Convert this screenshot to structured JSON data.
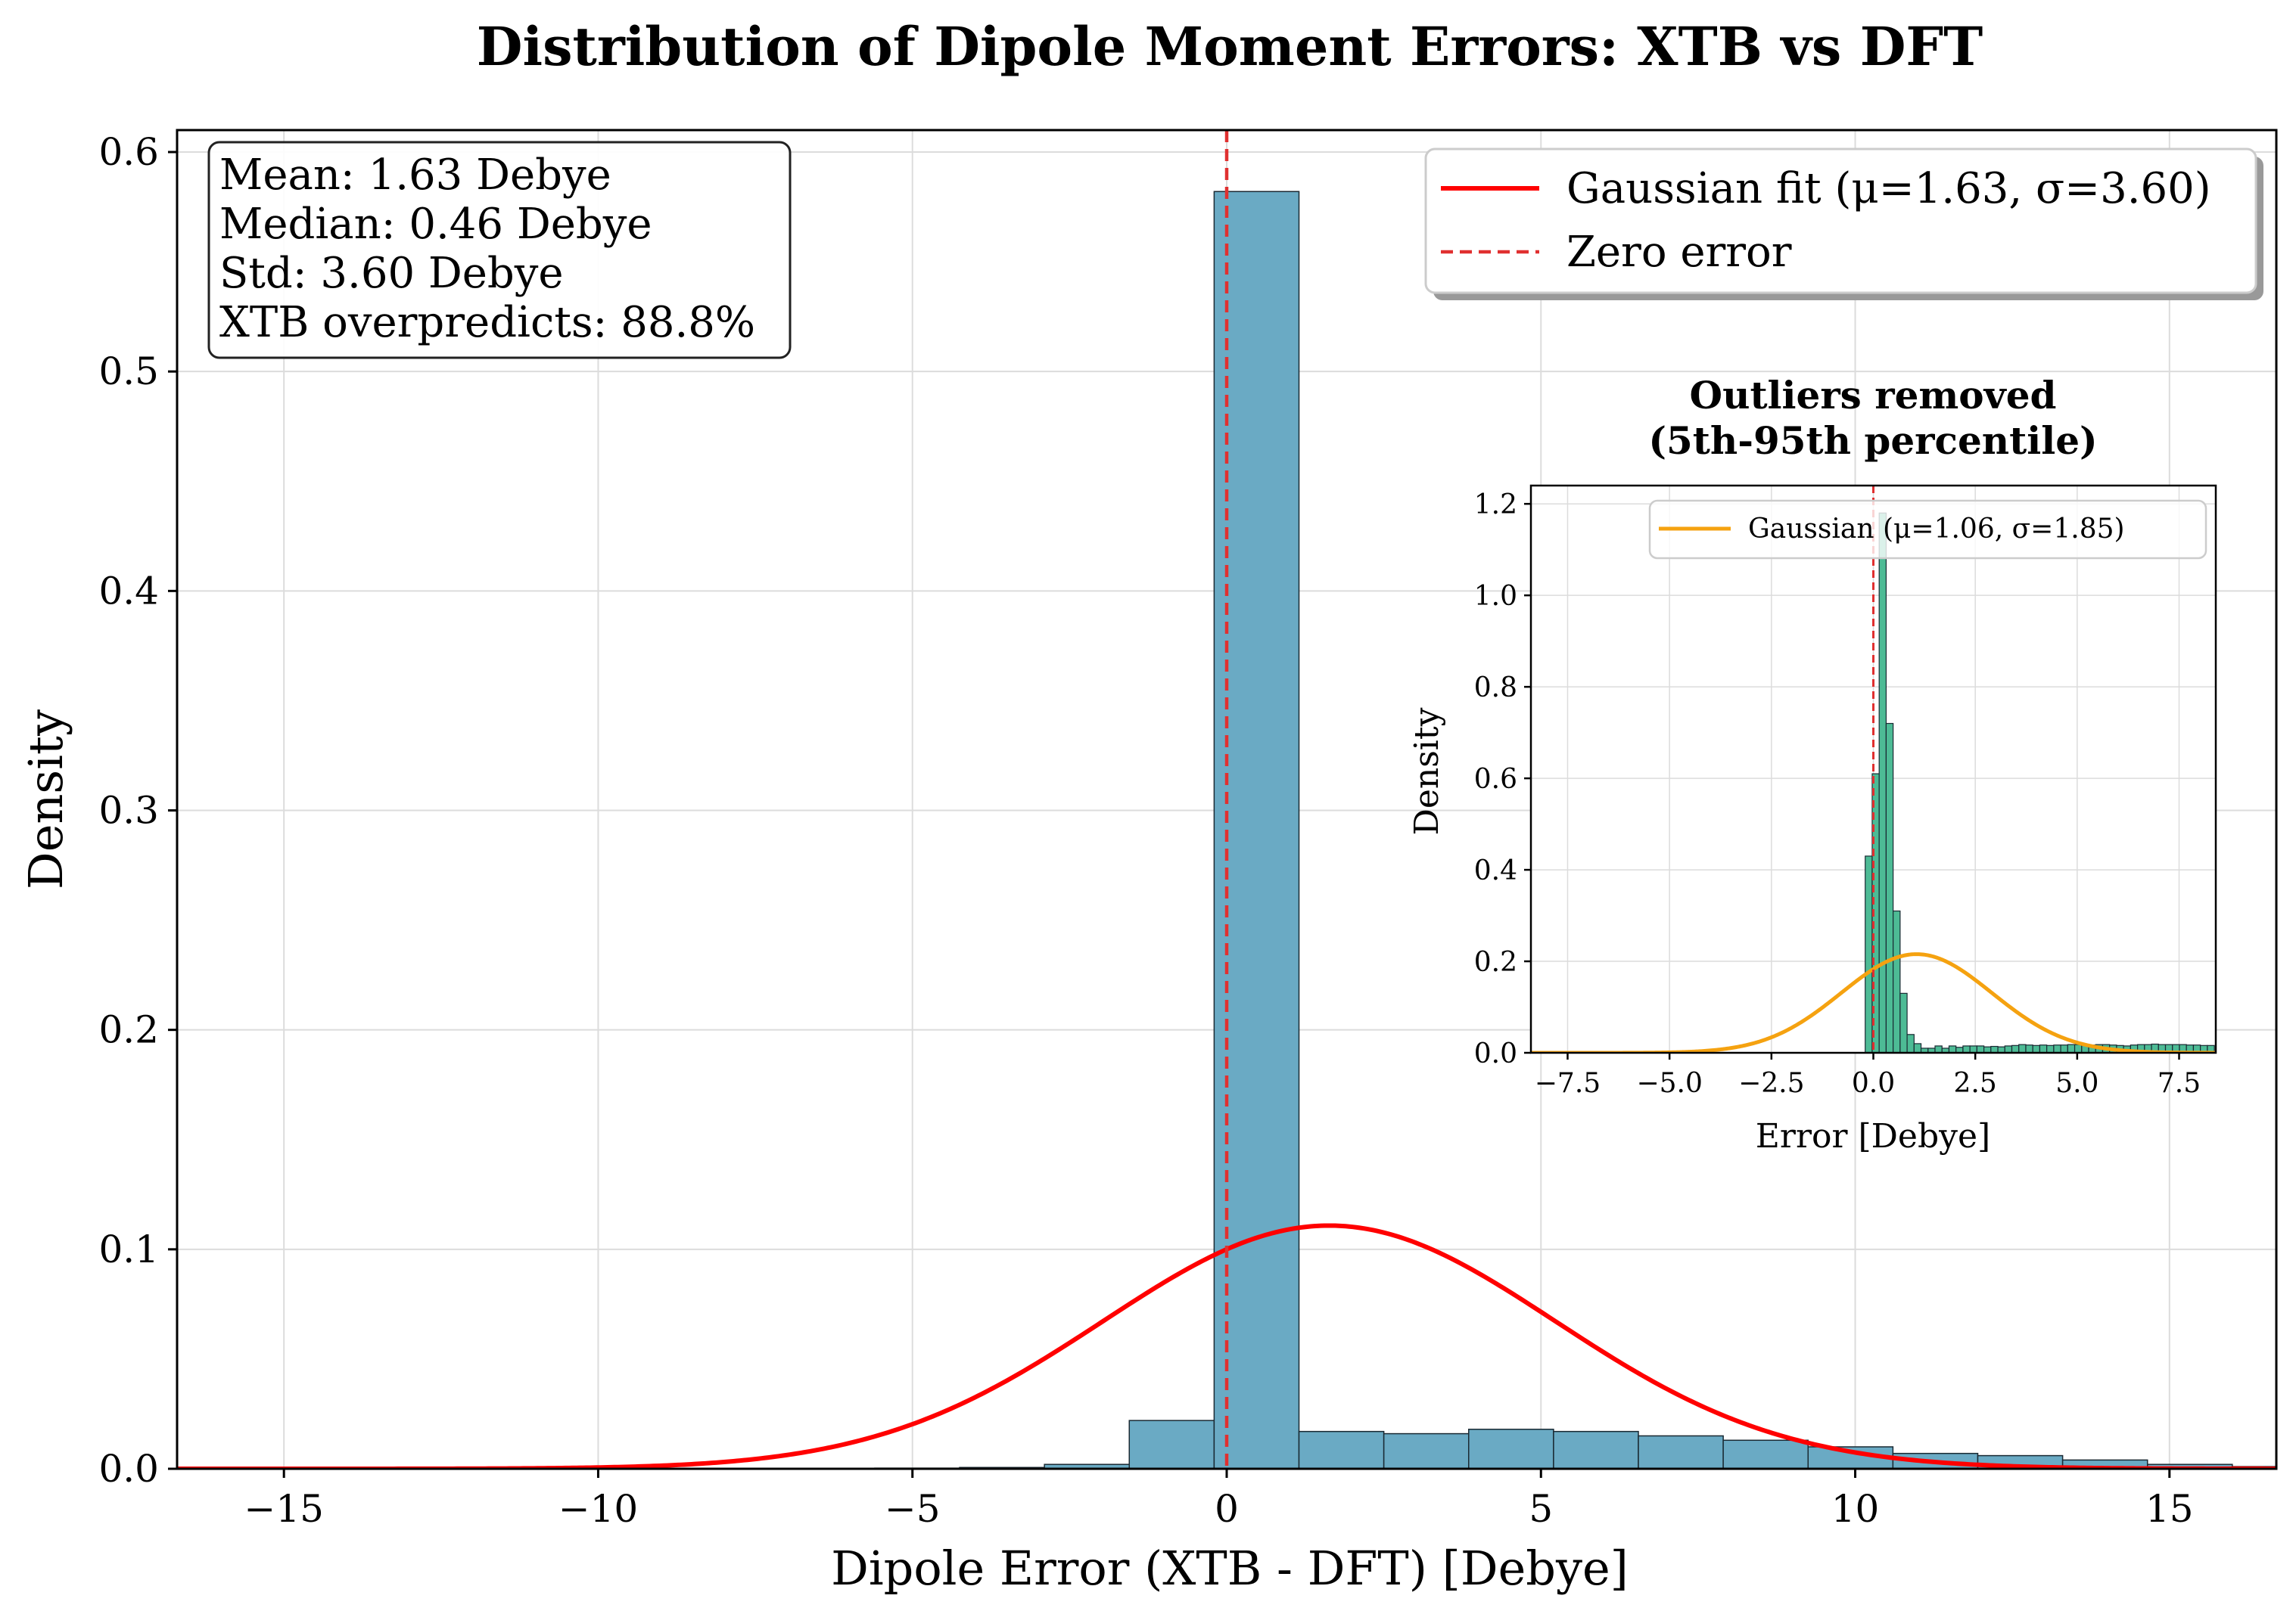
{
  "chart_data": [
    {
      "type": "bar",
      "subtype": "histogram",
      "title": "Distribution of Dipole Moment Errors: XTB vs DFT",
      "xlabel": "Dipole Error (XTB - DFT) [Debye]",
      "ylabel": "Density",
      "xlim": [
        -16.7,
        16.7
      ],
      "ylim": [
        0,
        0.61
      ],
      "xticks": [
        -15,
        -10,
        -5,
        0,
        5,
        10,
        15
      ],
      "xtick_labels": [
        "−15",
        "−10",
        "−5",
        "0",
        "5",
        "10",
        "15"
      ],
      "yticks": [
        0.0,
        0.1,
        0.2,
        0.3,
        0.4,
        0.5,
        0.6
      ],
      "ytick_labels": [
        "0.0",
        "0.1",
        "0.2",
        "0.3",
        "0.4",
        "0.5",
        "0.6"
      ],
      "grid": true,
      "bar_color": "#6aaac4",
      "bins": [
        {
          "x0": -5.6,
          "x1": -4.25,
          "value": 0.0003
        },
        {
          "x0": -4.25,
          "x1": -2.9,
          "value": 0.0006
        },
        {
          "x0": -2.9,
          "x1": -1.55,
          "value": 0.002
        },
        {
          "x0": -1.55,
          "x1": -0.2,
          "value": 0.022
        },
        {
          "x0": -0.2,
          "x1": 1.15,
          "value": 0.582
        },
        {
          "x0": 1.15,
          "x1": 2.5,
          "value": 0.017
        },
        {
          "x0": 2.5,
          "x1": 3.85,
          "value": 0.016
        },
        {
          "x0": 3.85,
          "x1": 5.2,
          "value": 0.018
        },
        {
          "x0": 5.2,
          "x1": 6.55,
          "value": 0.017
        },
        {
          "x0": 6.55,
          "x1": 7.9,
          "value": 0.015
        },
        {
          "x0": 7.9,
          "x1": 9.25,
          "value": 0.013
        },
        {
          "x0": 9.25,
          "x1": 10.6,
          "value": 0.01
        },
        {
          "x0": 10.6,
          "x1": 11.95,
          "value": 0.007
        },
        {
          "x0": 11.95,
          "x1": 13.3,
          "value": 0.006
        },
        {
          "x0": 13.3,
          "x1": 14.65,
          "value": 0.004
        },
        {
          "x0": 14.65,
          "x1": 16.0,
          "value": 0.002
        },
        {
          "x0": 16.0,
          "x1": 17.35,
          "value": 0.001
        }
      ],
      "gaussian_fit": {
        "mu": 1.63,
        "sigma": 3.6,
        "color": "#ff0000"
      },
      "zero_line": {
        "x": 0,
        "color": "#e03030"
      },
      "legend": {
        "position": "upper right",
        "entries": [
          {
            "label": "Gaussian fit (μ=1.63, σ=3.60)",
            "style": "solid",
            "color": "#ff0000"
          },
          {
            "label": "Zero error",
            "style": "dashed",
            "color": "#e03030"
          }
        ]
      },
      "stats_box": {
        "position": "upper left",
        "lines": [
          "Mean: 1.63 Debye",
          "Median: 0.46 Debye",
          "Std: 3.60 Debye",
          "XTB overpredicts: 88.8%"
        ]
      }
    },
    {
      "type": "bar",
      "subtype": "histogram",
      "role": "inset",
      "title_lines": [
        "Outliers removed",
        "(5th-95th percentile)"
      ],
      "xlabel": "Error [Debye]",
      "ylabel": "Density",
      "xlim": [
        -8.4,
        8.4
      ],
      "ylim": [
        0,
        1.24
      ],
      "xticks": [
        -7.5,
        -5.0,
        -2.5,
        0.0,
        2.5,
        5.0,
        7.5
      ],
      "xtick_labels": [
        "−7.5",
        "−5.0",
        "−2.5",
        "0.0",
        "2.5",
        "5.0",
        "7.5"
      ],
      "yticks": [
        0.0,
        0.2,
        0.4,
        0.6,
        0.8,
        1.0,
        1.2
      ],
      "ytick_labels": [
        "0.0",
        "0.2",
        "0.4",
        "0.6",
        "0.8",
        "1.0",
        "1.2"
      ],
      "grid": true,
      "bar_color": "#4dbb95",
      "bin_start": -0.2,
      "bin_width": 0.1713,
      "values": [
        0.43,
        0.61,
        1.18,
        0.72,
        0.31,
        0.13,
        0.04,
        0.02,
        0.01,
        0.01,
        0.015,
        0.01,
        0.015,
        0.012,
        0.015,
        0.015,
        0.015,
        0.013,
        0.014,
        0.013,
        0.015,
        0.016,
        0.018,
        0.017,
        0.016,
        0.017,
        0.016,
        0.017,
        0.017,
        0.018,
        0.018,
        0.017,
        0.017,
        0.018,
        0.018,
        0.017,
        0.016,
        0.015,
        0.017,
        0.018,
        0.018,
        0.019,
        0.018,
        0.018,
        0.018,
        0.018,
        0.017,
        0.017,
        0.016,
        0.016
      ],
      "gaussian_fit": {
        "mu": 1.06,
        "sigma": 1.85,
        "color": "#f5a210"
      },
      "zero_line": {
        "x": 0,
        "color": "#e03030"
      },
      "legend": {
        "position": "upper right",
        "entries": [
          {
            "label": "Gaussian (μ=1.06, σ=1.85)",
            "style": "solid",
            "color": "#f5a210"
          }
        ]
      }
    }
  ]
}
